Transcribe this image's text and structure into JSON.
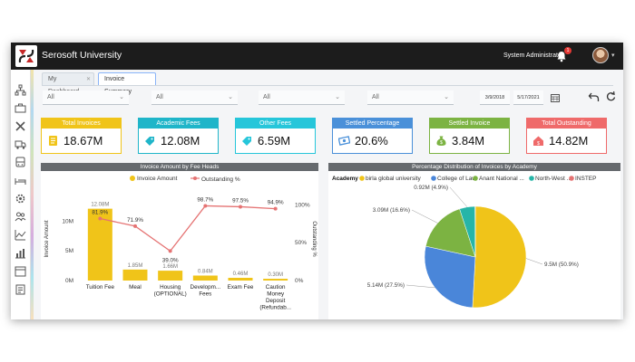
{
  "app": {
    "title": "Serosoft University",
    "user": "System Administrator",
    "notification_count": "1"
  },
  "tabs": [
    {
      "label": "My Dashboard"
    },
    {
      "label": "Invoice Summary"
    }
  ],
  "filters": [
    {
      "value": "All"
    },
    {
      "value": "All"
    },
    {
      "value": "All"
    },
    {
      "value": "All"
    }
  ],
  "dates": {
    "from": "3/9/2018",
    "to": "5/17/2021"
  },
  "kpis": [
    {
      "label": "Total Invoices",
      "value": "18.67M",
      "color": "#f0c419",
      "icon": "document-icon"
    },
    {
      "label": "Academic Fees",
      "value": "12.08M",
      "color": "#1fb5c9",
      "icon": "tag-icon"
    },
    {
      "label": "Other Fees",
      "value": "6.59M",
      "color": "#26c6da",
      "icon": "tag-icon"
    },
    {
      "label": "Settled Percentage",
      "value": "20.6%",
      "color": "#4a90d9",
      "icon": "money-icon"
    },
    {
      "label": "Settled Invoice",
      "value": "3.84M",
      "color": "#7cb342",
      "icon": "money-bag-icon"
    },
    {
      "label": "Total Outstanding",
      "value": "14.82M",
      "color": "#ef6a6a",
      "icon": "house-money-icon"
    }
  ],
  "chart_data": [
    {
      "type": "bar",
      "title": "Invoice Amount by Fee Heads",
      "categories": [
        "Tuition Fee",
        "Meal",
        "Housing (OPTIONAL)",
        "Development Fees",
        "Exam Fee",
        "Caution Money Deposit (Refundab..."
      ],
      "category_lines": [
        [
          "Tuition Fee"
        ],
        [
          "Meal"
        ],
        [
          "Housing",
          "(OPTIONAL)"
        ],
        [
          "Developm...",
          "Fees"
        ],
        [
          "Exam Fee"
        ],
        [
          "Caution",
          "Money",
          "Deposit",
          "(Refundab..."
        ]
      ],
      "series": [
        {
          "name": "Invoice Amount",
          "type": "bar",
          "color": "#f0c419",
          "values": [
            12.08,
            1.85,
            1.66,
            0.84,
            0.46,
            0.3
          ],
          "labels": [
            "12.08M",
            "1.85M",
            "1.66M",
            "0.84M",
            "0.46M",
            "0.30M"
          ]
        },
        {
          "name": "Outstanding %",
          "type": "line",
          "color": "#e57373",
          "values": [
            81.9,
            71.9,
            39.0,
            98.7,
            97.5,
            94.9
          ],
          "labels": [
            "81.9%",
            "71.9%",
            "39.0%",
            "98.7%",
            "97.5%",
            "94.9%"
          ]
        }
      ],
      "ylabel": "Invoice Amount",
      "y2label": "Outstanding %",
      "ylim": [
        0,
        14
      ],
      "yticks": [
        "0M",
        "5M",
        "10M"
      ],
      "y2lim": [
        0,
        110
      ],
      "y2ticks": [
        "0%",
        "50%",
        "100%"
      ]
    },
    {
      "type": "pie",
      "title": "Percentage Distribution of Invoices by Academy",
      "legend_title": "Academy",
      "slices": [
        {
          "name": "birla global university",
          "value": 9.5,
          "label": "9.5M (50.9%)",
          "color": "#f0c419"
        },
        {
          "name": "College of Law",
          "value": 5.14,
          "label": "5.14M (27.5%)",
          "color": "#4a86d9"
        },
        {
          "name": "Anant National ...",
          "value": 3.09,
          "label": "3.09M (16.6%)",
          "color": "#7cb342"
        },
        {
          "name": "North-West ...",
          "value": 0.92,
          "label": "0.92M (4.9%)",
          "color": "#26b5a8"
        },
        {
          "name": "INSTEP",
          "value": 0.02,
          "label": "",
          "color": "#e57373"
        }
      ]
    }
  ]
}
